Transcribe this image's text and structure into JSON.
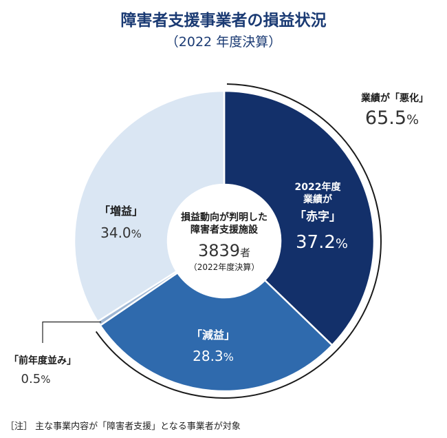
{
  "title": "障害者支援事業者の損益状況",
  "subtitle": "（2022 年度決算）",
  "footnote": "［注］ 主な事業内容が「障害者支援」となる事業者が対象",
  "center": {
    "line1": "損益動向が判明した",
    "line2": "障害者支援施設",
    "count": "3839",
    "count_unit": "者",
    "note": "（2022年度決算）"
  },
  "bracket_label": {
    "line1": "業績が「悪化」",
    "value": "65.5",
    "unit": "%"
  },
  "colors": {
    "deficit": "#13306a",
    "decrease": "#2f6aad",
    "flat": "#9fb7d4",
    "increase": "#dae6f3",
    "title": "#1a3a73"
  },
  "chart_data": {
    "type": "pie",
    "style": "donut",
    "title": "障害者支援事業者の損益状況",
    "subtitle": "（2022 年度決算）",
    "slices": [
      {
        "key": "deficit",
        "label_lines": [
          "2022年度",
          "業績が",
          "「赤字」"
        ],
        "value": 37.2,
        "value_text": "37.2",
        "unit": "%"
      },
      {
        "key": "decrease",
        "label_lines": [
          "「減益」"
        ],
        "value": 28.3,
        "value_text": "28.3",
        "unit": "%"
      },
      {
        "key": "flat",
        "label_lines": [
          "「前年度並み」"
        ],
        "value": 0.5,
        "value_text": "0.5",
        "unit": "%"
      },
      {
        "key": "increase",
        "label_lines": [
          "「増益」"
        ],
        "value": 34.0,
        "value_text": "34.0",
        "unit": "%"
      }
    ],
    "combined_worse": {
      "label": "業績が「悪化」",
      "value": 65.5,
      "members": [
        "deficit",
        "decrease"
      ]
    }
  }
}
